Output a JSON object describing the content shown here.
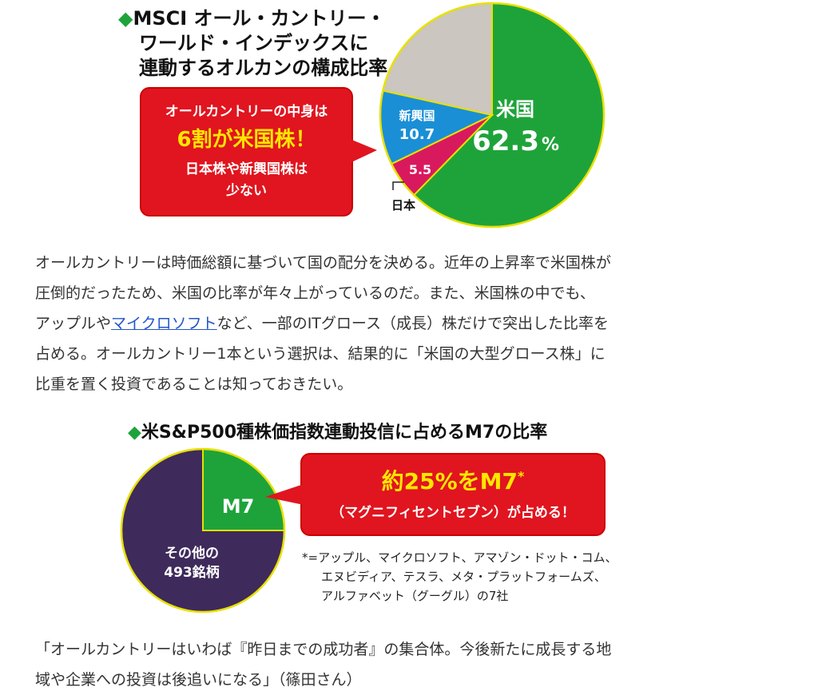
{
  "colors": {
    "usa": "#1ea33a",
    "emerging": "#1a8fd6",
    "japan": "#d9195e",
    "other": "#cbc6bf",
    "m7": "#1ea33a",
    "rest": "#3e2a5b",
    "callout": "#e0151f",
    "highlight": "#ffe600",
    "link": "#2255cc"
  },
  "chart1": {
    "title_mark": "◆",
    "title_lines": [
      "MSCI オール・カントリー・",
      "ワールド・インデックスに",
      "連動するオルカンの構成比率"
    ],
    "callout": {
      "line1": "オールカントリーの中身は",
      "line2": "6割が米国株！",
      "line3": "日本株や新興国株は",
      "line4": "少ない"
    },
    "labels": {
      "usa_name": "米国",
      "usa_value": "62.3",
      "usa_unit": "%",
      "emerging_name": "新興国",
      "emerging_value": "10.7",
      "japan_value": "5.5",
      "japan_name": "日本"
    }
  },
  "paragraph1": {
    "line1": "オールカントリーは時価総額に基づいて国の配分を決める。近年の上昇率で米国株が",
    "line2": "圧倒的だったため、米国の比率が年々上がっているのだ。また、米国株の中でも、",
    "line3_before": "アップルや",
    "line3_link": "マイクロソフト",
    "line3_after": "など、一部のITグロース（成長）株だけで突出した比率を",
    "line4": "占める。オールカントリー1本という選択は、結果的に「米国の大型グロース株」に",
    "line5": "比重を置く投資であることは知っておきたい。"
  },
  "chart2": {
    "title_mark": "◆",
    "title": "米S&P500種株価指数連動投信に占めるM7の比率",
    "callout": {
      "line1": "約25%をM7",
      "line1_mark": "*",
      "line2": "（マグニフィセントセブン）が占める！"
    },
    "labels": {
      "m7": "M7",
      "rest_line1": "その他の",
      "rest_line2": "493銘柄"
    },
    "note_lines": [
      "*=アップル、マイクロソフト、アマゾン・ドット・コム、",
      "エヌビディア、テスラ、メタ・プラットフォームズ、",
      "アルファベット（グーグル）の7社"
    ]
  },
  "paragraph2": {
    "line1": "「オールカントリーはいわば『昨日までの成功者』の集合体。今後新たに成長する地",
    "line2": "域や企業への投資は後追いになる」（篠田さん）"
  },
  "chart_data": [
    {
      "type": "pie",
      "title": "MSCI オール・カントリー・ワールド・インデックスに連動するオルカンの構成比率",
      "categories": [
        "米国",
        "日本",
        "新興国",
        ""
      ],
      "values": [
        62.3,
        5.5,
        10.7,
        21.5
      ],
      "unit": "%",
      "legend": "none"
    },
    {
      "type": "pie",
      "title": "米S&P500種株価指数連動投信に占めるM7の比率",
      "categories": [
        "M7",
        "その他の493銘柄"
      ],
      "values": [
        25,
        75
      ],
      "unit": "%",
      "legend": "none"
    }
  ]
}
